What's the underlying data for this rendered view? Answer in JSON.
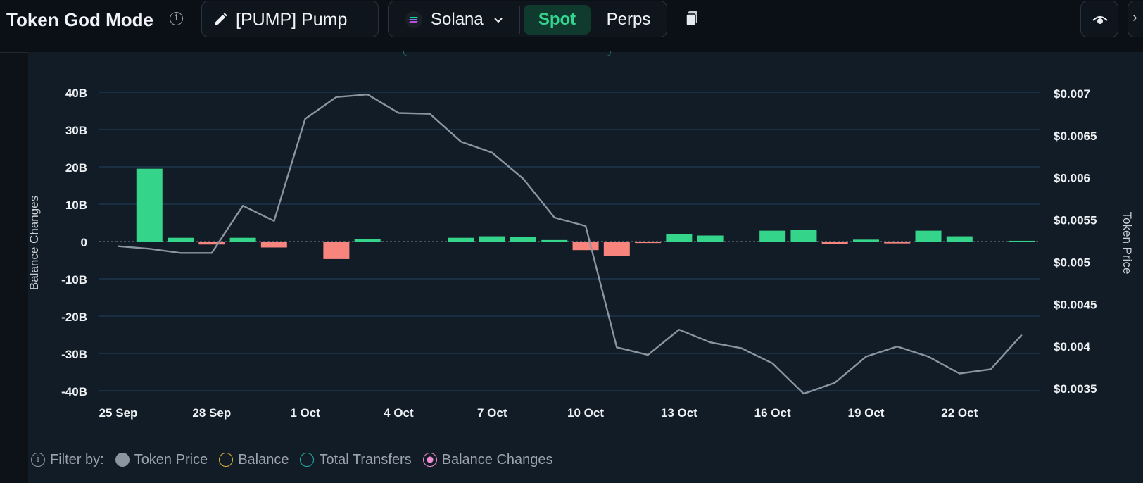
{
  "header": {
    "title": "Token God Mode",
    "token_label": "[PUMP] Pump",
    "network_label": "Solana",
    "spot_label": "Spot",
    "perps_label": "Perps"
  },
  "icons": [
    "info-icon",
    "pencil-icon",
    "solana-icon",
    "chevron-down-icon",
    "copy-icon",
    "eye-icon"
  ],
  "colors": {
    "positive_bar": "#34d58a",
    "negative_bar": "#f7847d",
    "price_line": "#8b959f",
    "accent": "#33d58f"
  },
  "filter": {
    "label": "Filter by:",
    "items": [
      {
        "label": "Token Price",
        "color": "#8b959f",
        "style": "filled"
      },
      {
        "label": "Balance",
        "color": "#e0b33a",
        "style": "outline"
      },
      {
        "label": "Total Transfers",
        "color": "#1fb3a8",
        "style": "outline"
      },
      {
        "label": "Balance Changes",
        "color": "#f28bd0",
        "style": "selected"
      }
    ]
  },
  "chart_data": {
    "type": "bar+line",
    "x_tick_labels": [
      "25 Sep",
      "28 Sep",
      "1 Oct",
      "4 Oct",
      "7 Oct",
      "10 Oct",
      "13 Oct",
      "16 Oct",
      "19 Oct",
      "22 Oct"
    ],
    "dates": [
      "25 Sep",
      "26 Sep",
      "27 Sep",
      "28 Sep",
      "29 Sep",
      "30 Sep",
      "1 Oct",
      "2 Oct",
      "3 Oct",
      "4 Oct",
      "5 Oct",
      "6 Oct",
      "7 Oct",
      "8 Oct",
      "9 Oct",
      "10 Oct",
      "11 Oct",
      "12 Oct",
      "13 Oct",
      "14 Oct",
      "15 Oct",
      "16 Oct",
      "17 Oct",
      "18 Oct",
      "19 Oct",
      "20 Oct",
      "21 Oct",
      "22 Oct",
      "23 Oct",
      "24 Oct"
    ],
    "series": [
      {
        "name": "Balance Changes",
        "type": "bar",
        "axis": "left",
        "values": [
          0,
          19.5,
          1.0,
          -0.8,
          1.0,
          -1.6,
          0,
          -4.7,
          0.7,
          0,
          0,
          1.0,
          1.4,
          1.2,
          0.4,
          -2.3,
          -3.9,
          -0.4,
          1.9,
          1.6,
          0,
          2.9,
          3.1,
          -0.6,
          0.5,
          -0.5,
          2.9,
          1.4,
          0,
          0.2
        ]
      },
      {
        "name": "Token Price",
        "type": "line",
        "axis": "right",
        "values": [
          0.00519,
          0.00516,
          0.00511,
          0.00511,
          0.00567,
          0.00549,
          0.0067,
          0.00696,
          0.00699,
          0.00677,
          0.00676,
          0.00643,
          0.0063,
          0.00599,
          0.00553,
          0.00543,
          0.00399,
          0.0039,
          0.0042,
          0.00405,
          0.00398,
          0.0038,
          0.00344,
          0.00357,
          0.00388,
          0.004,
          0.00388,
          0.00368,
          0.00373,
          0.00414
        ]
      }
    ],
    "y_left": {
      "label": "Balance Changes",
      "ticks": [
        "40B",
        "30B",
        "20B",
        "10B",
        "0",
        "-10B",
        "-20B",
        "-30B",
        "-40B"
      ],
      "range": [
        -40,
        40
      ],
      "unit": "billions"
    },
    "y_right": {
      "label": "Token Price",
      "ticks": [
        "$0.007",
        "$0.0065",
        "$0.006",
        "$0.0055",
        "$0.005",
        "$0.0045",
        "$0.004",
        "$0.0035"
      ],
      "range": [
        0.0035,
        0.007
      ]
    },
    "grid": true
  }
}
